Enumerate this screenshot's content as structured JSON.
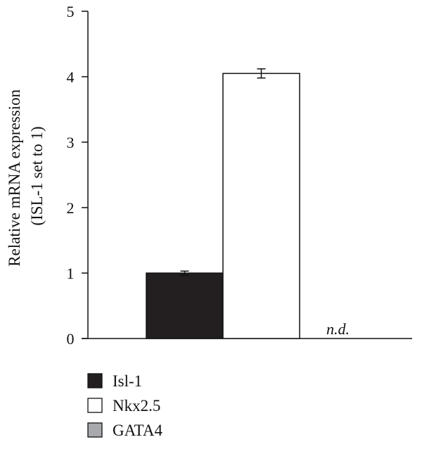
{
  "chart_data": {
    "type": "bar",
    "ylabel_line1": "Relative mRNA expression",
    "ylabel_line2": "(ISL-1 set to 1)",
    "ylim": [
      0,
      5
    ],
    "yticks": [
      0,
      1,
      2,
      3,
      4,
      5
    ],
    "grid": false,
    "legend_position": "bottom-left",
    "series": [
      {
        "name": "Isl-1",
        "value": 1.0,
        "error": 0.03,
        "color": "#231f20",
        "annotation": ""
      },
      {
        "name": "Nkx2.5",
        "value": 4.05,
        "error": 0.07,
        "color": "#ffffff",
        "annotation": ""
      },
      {
        "name": "GATA4",
        "value": null,
        "error": null,
        "color": "#a7a9ac",
        "annotation": "n.d."
      }
    ]
  }
}
